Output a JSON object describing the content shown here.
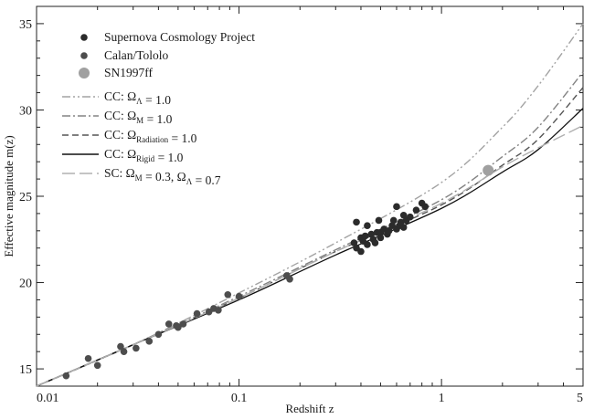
{
  "chart_data": {
    "type": "scatter",
    "xlabel": "Redshift z",
    "ylabel": "Effective magnitude m(z)",
    "x_scale": "log",
    "xlim": [
      0.01,
      5
    ],
    "ylim": [
      14,
      36
    ],
    "x_ticks": [
      {
        "value": 0.01,
        "label": "0.01"
      },
      {
        "value": 0.1,
        "label": "0.1"
      },
      {
        "value": 1,
        "label": "1"
      },
      {
        "value": 5,
        "label": "5"
      }
    ],
    "y_ticks": [
      {
        "value": 15,
        "label": "15"
      },
      {
        "value": 20,
        "label": "20"
      },
      {
        "value": 25,
        "label": "25"
      },
      {
        "value": 30,
        "label": "30"
      },
      {
        "value": 35,
        "label": "35"
      }
    ],
    "grid": false,
    "legend_position": "top-left",
    "legend": [
      {
        "marker": "dot-dark",
        "parts": [
          [
            "Supernova Cosmology Project",
            ""
          ]
        ]
      },
      {
        "marker": "dot-mid",
        "parts": [
          [
            "Calan/Tololo",
            ""
          ]
        ]
      },
      {
        "marker": "dot-light",
        "parts": [
          [
            "SN1997ff",
            ""
          ]
        ]
      },
      {
        "line": "dashdotdot",
        "color": "#a3a3a3",
        "parts": [
          [
            "CC: Ω",
            ""
          ],
          [
            "",
            "Λ"
          ],
          [
            " = 1.0",
            ""
          ]
        ]
      },
      {
        "line": "dashdot",
        "color": "#838383",
        "parts": [
          [
            "CC: Ω",
            ""
          ],
          [
            "",
            "M"
          ],
          [
            " = 1.0",
            ""
          ]
        ]
      },
      {
        "line": "dashed",
        "color": "#555555",
        "parts": [
          [
            "CC: Ω",
            ""
          ],
          [
            "",
            "Radiation"
          ],
          [
            " = 1.0",
            ""
          ]
        ]
      },
      {
        "line": "solid",
        "color": "#111111",
        "parts": [
          [
            "CC: Ω",
            ""
          ],
          [
            "",
            "Rigid"
          ],
          [
            " = 1.0",
            ""
          ]
        ]
      },
      {
        "line": "longdash",
        "color": "#b0b0b0",
        "parts": [
          [
            "SC: Ω",
            ""
          ],
          [
            "",
            "M"
          ],
          [
            " = 0.3, Ω",
            ""
          ],
          [
            "",
            "Λ"
          ],
          [
            " = 0.7",
            ""
          ]
        ]
      }
    ],
    "series": [
      {
        "name": "Supernova Cosmology Project",
        "kind": "points",
        "marker": "dot-dark",
        "color": "#2b2b2b",
        "points": [
          [
            0.37,
            22.3
          ],
          [
            0.38,
            23.5
          ],
          [
            0.38,
            22.0
          ],
          [
            0.4,
            22.6
          ],
          [
            0.4,
            21.8
          ],
          [
            0.41,
            22.4
          ],
          [
            0.42,
            22.7
          ],
          [
            0.43,
            22.2
          ],
          [
            0.43,
            23.3
          ],
          [
            0.45,
            22.8
          ],
          [
            0.46,
            22.5
          ],
          [
            0.47,
            22.3
          ],
          [
            0.48,
            22.9
          ],
          [
            0.49,
            23.6
          ],
          [
            0.5,
            22.9
          ],
          [
            0.5,
            22.6
          ],
          [
            0.52,
            23.1
          ],
          [
            0.54,
            22.8
          ],
          [
            0.55,
            23.0
          ],
          [
            0.57,
            23.3
          ],
          [
            0.58,
            23.6
          ],
          [
            0.6,
            23.1
          ],
          [
            0.6,
            24.4
          ],
          [
            0.62,
            23.3
          ],
          [
            0.63,
            23.5
          ],
          [
            0.65,
            23.2
          ],
          [
            0.65,
            23.9
          ],
          [
            0.67,
            23.6
          ],
          [
            0.7,
            23.8
          ],
          [
            0.75,
            24.2
          ],
          [
            0.8,
            24.6
          ],
          [
            0.83,
            24.4
          ]
        ]
      },
      {
        "name": "Calan/Tololo",
        "kind": "points",
        "marker": "dot-mid",
        "color": "#4d4d4d",
        "points": [
          [
            0.014,
            14.6
          ],
          [
            0.018,
            15.6
          ],
          [
            0.02,
            15.2
          ],
          [
            0.026,
            16.3
          ],
          [
            0.027,
            16.0
          ],
          [
            0.031,
            16.2
          ],
          [
            0.036,
            16.6
          ],
          [
            0.04,
            17.0
          ],
          [
            0.045,
            17.6
          ],
          [
            0.049,
            17.5
          ],
          [
            0.05,
            17.4
          ],
          [
            0.053,
            17.6
          ],
          [
            0.062,
            18.2
          ],
          [
            0.071,
            18.3
          ],
          [
            0.075,
            18.5
          ],
          [
            0.079,
            18.4
          ],
          [
            0.088,
            19.3
          ],
          [
            0.1,
            19.2
          ],
          [
            0.172,
            20.4
          ],
          [
            0.178,
            20.2
          ]
        ]
      },
      {
        "name": "SN1997ff",
        "kind": "points",
        "marker": "dot-light",
        "color": "#a0a0a0",
        "points": [
          [
            1.7,
            26.5
          ]
        ]
      },
      {
        "name": "CC: ΩΛ = 1.0",
        "kind": "line",
        "style": "dashdotdot",
        "color": "#a3a3a3",
        "x": [
          0.01,
          0.03,
          0.1,
          0.3,
          1,
          2,
          3,
          5
        ],
        "y": [
          14.0,
          16.4,
          19.4,
          22.3,
          25.8,
          29.0,
          31.4,
          35.0
        ]
      },
      {
        "name": "CC: ΩM = 1.0",
        "kind": "line",
        "style": "dashdot",
        "color": "#838383",
        "x": [
          0.01,
          0.03,
          0.1,
          0.3,
          1,
          2,
          3,
          5
        ],
        "y": [
          14.0,
          16.4,
          19.2,
          21.9,
          24.8,
          27.3,
          29.0,
          32.2
        ]
      },
      {
        "name": "CC: ΩRadiation = 1.0",
        "kind": "line",
        "style": "dashed",
        "color": "#555555",
        "x": [
          0.01,
          0.03,
          0.1,
          0.3,
          1,
          2,
          3,
          5
        ],
        "y": [
          14.0,
          16.4,
          19.1,
          21.8,
          24.5,
          26.8,
          28.3,
          31.3
        ]
      },
      {
        "name": "CC: ΩRigid = 1.0",
        "kind": "line",
        "style": "solid",
        "color": "#111111",
        "x": [
          0.01,
          0.03,
          0.1,
          0.3,
          1,
          2,
          3,
          5
        ],
        "y": [
          14.0,
          16.4,
          19.0,
          21.6,
          24.3,
          26.4,
          27.7,
          30.1
        ]
      },
      {
        "name": "SC: ΩM = 0.3, ΩΛ = 0.7",
        "kind": "line",
        "style": "longdash",
        "color": "#b0b0b0",
        "x": [
          0.01,
          0.03,
          0.1,
          0.3,
          1,
          2,
          3,
          5
        ],
        "y": [
          14.0,
          16.4,
          19.1,
          21.8,
          24.6,
          26.7,
          27.8,
          29.1
        ]
      }
    ]
  }
}
